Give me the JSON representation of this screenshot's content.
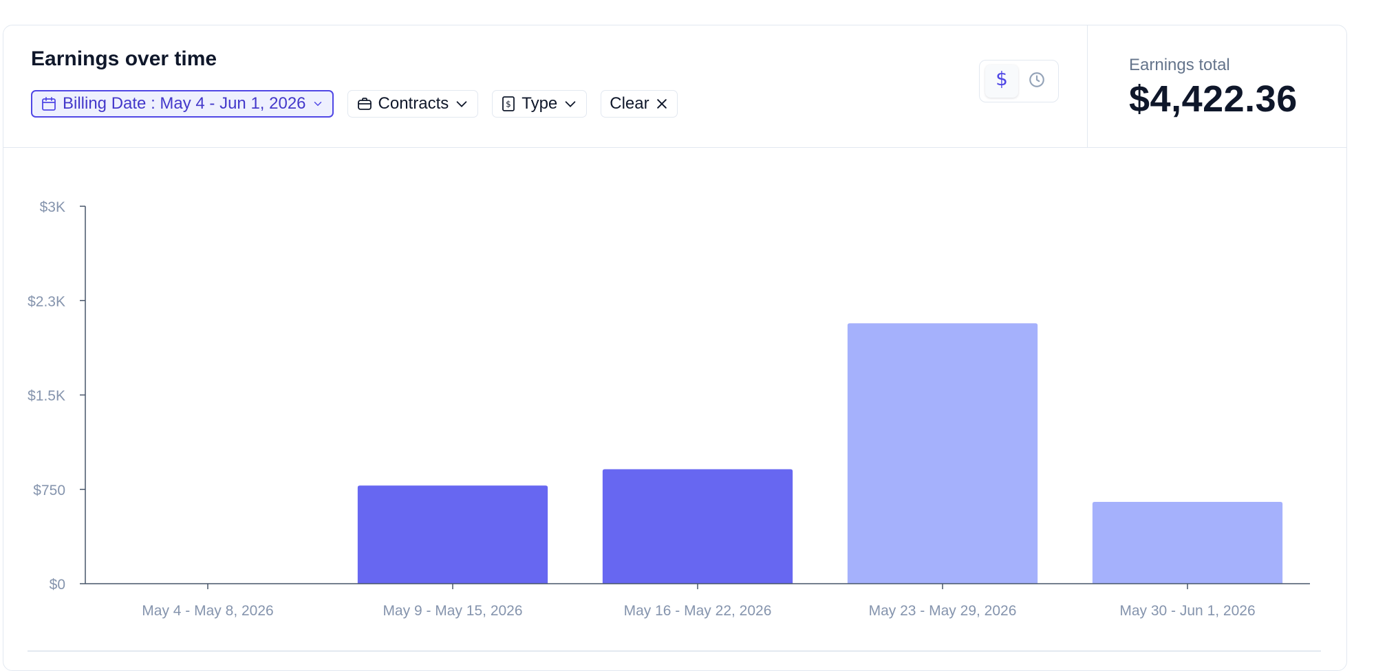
{
  "header": {
    "title": "Earnings over time"
  },
  "filters": {
    "billing_date": "Billing Date : May 4 - Jun 1, 2026",
    "contracts": "Contracts",
    "type": "Type",
    "clear": "Clear"
  },
  "toggle": {
    "options": [
      "dollar",
      "clock"
    ],
    "selected": "dollar"
  },
  "summary": {
    "label": "Earnings total",
    "value": "$4,422.36"
  },
  "colors": {
    "accent": "#4f46e5",
    "bar_primary": "#6767f1",
    "bar_light": "#a5b1fc",
    "axis": "#475569",
    "tick_text": "#8594ad"
  },
  "icons": {
    "billing": "calendar-icon",
    "contracts": "briefcase-icon",
    "type": "receipt-icon",
    "clear": "close-icon",
    "dropdown": "chevron-down-icon",
    "toggle_dollar": "dollar-icon",
    "toggle_clock": "clock-icon"
  },
  "chart_data": {
    "type": "bar",
    "categories": [
      "May 4 - May 8, 2026",
      "May 9 - May 15, 2026",
      "May 16 - May 22, 2026",
      "May 23 - May 29, 2026",
      "May 30 - Jun 1, 2026"
    ],
    "values": [
      0,
      780,
      910,
      2070,
      650
    ],
    "bar_color_keys": [
      "bar_primary",
      "bar_primary",
      "bar_primary",
      "bar_light",
      "bar_light"
    ],
    "y_ticks": [
      "$0",
      "$750",
      "$1.5K",
      "$2.3K",
      "$3K"
    ],
    "y_tick_values": [
      0,
      750,
      1500,
      2250,
      3000
    ],
    "ylim": [
      0,
      3000
    ],
    "grid": false,
    "title": "",
    "xlabel": "",
    "ylabel": ""
  }
}
